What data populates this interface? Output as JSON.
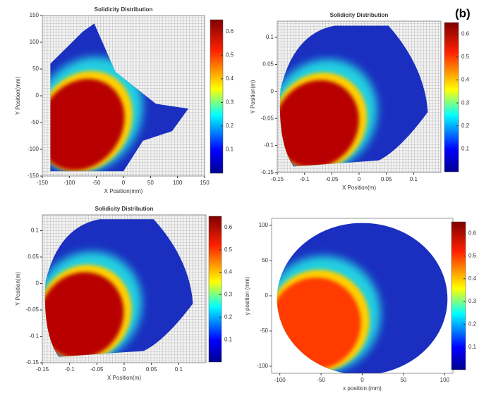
{
  "label": "(b)",
  "chart_data": [
    {
      "type": "heatmap",
      "title": "Solidicity Distribution",
      "xlabel": "X Position(mm)",
      "ylabel": "Y Position(mm)",
      "xlim": [
        -150,
        150
      ],
      "xticks": [
        -150,
        -100,
        -50,
        0,
        50,
        100,
        150
      ],
      "ylim": [
        -150,
        150
      ],
      "yticks": [
        -150,
        -100,
        -50,
        0,
        50,
        100,
        150
      ],
      "clim": [
        0,
        0.65
      ],
      "cticks": [
        0.1,
        0.2,
        0.3,
        0.4,
        0.5,
        0.6
      ],
      "grid": true
    },
    {
      "type": "heatmap",
      "title": "Solidicity Distribution",
      "xlabel": "X Position(m)",
      "ylabel": "Y Position(m)",
      "xlim": [
        -0.15,
        0.15
      ],
      "xticks": [
        -0.15,
        -0.1,
        -0.05,
        0,
        0.05,
        0.1
      ],
      "ylim": [
        -0.15,
        0.13
      ],
      "yticks": [
        -0.15,
        -0.1,
        -0.05,
        0,
        0.05,
        0.1
      ],
      "clim": [
        0,
        0.65
      ],
      "cticks": [
        0.1,
        0.2,
        0.3,
        0.4,
        0.5,
        0.6
      ],
      "grid": true
    },
    {
      "type": "heatmap",
      "title": "Solidicity Distribution",
      "xlabel": "X Position(m)",
      "ylabel": "Y Position(m)",
      "xlim": [
        -0.15,
        0.15
      ],
      "xticks": [
        -0.15,
        -0.1,
        -0.05,
        0,
        0.05,
        0.1
      ],
      "ylim": [
        -0.15,
        0.13
      ],
      "yticks": [
        -0.15,
        -0.1,
        -0.05,
        0,
        0.05,
        0.1
      ],
      "clim": [
        0,
        0.65
      ],
      "cticks": [
        0.1,
        0.2,
        0.3,
        0.4,
        0.5,
        0.6
      ],
      "grid": true
    },
    {
      "type": "heatmap",
      "xlabel": "x position (mm)",
      "ylabel": "y position (mm)",
      "xlim": [
        -110,
        110
      ],
      "xticks": [
        -100,
        -50,
        0,
        50,
        100
      ],
      "ylim": [
        -110,
        110
      ],
      "yticks": [
        -100,
        -50,
        0,
        50,
        100
      ],
      "clim": [
        0,
        0.65
      ],
      "cticks": [
        0.1,
        0.2,
        0.3,
        0.4,
        0.5,
        0.6
      ],
      "grid": false
    }
  ]
}
